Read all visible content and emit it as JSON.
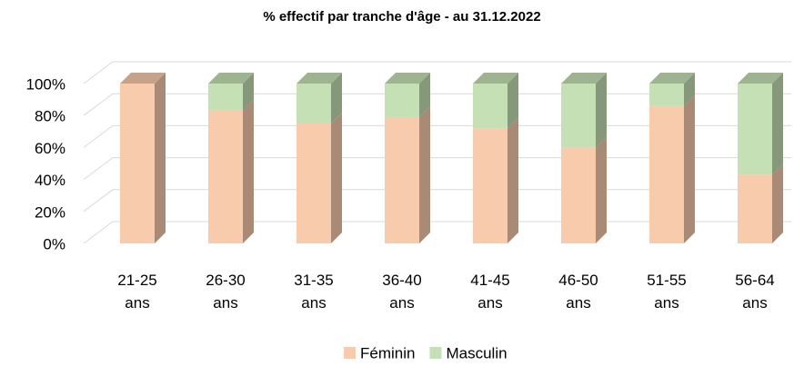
{
  "chart_data": {
    "type": "bar3d_stacked",
    "title": "% effectif par tranche d'âge - au 31.12.2022",
    "categories": [
      "21-25 ans",
      "26-30 ans",
      "31-35 ans",
      "36-40 ans",
      "41-45 ans",
      "46-50 ans",
      "51-55 ans",
      "56-64 ans"
    ],
    "series": [
      {
        "name": "Féminin",
        "color": "#f8cbad",
        "values": [
          100,
          83,
          75,
          79,
          72,
          60,
          86,
          43
        ]
      },
      {
        "name": "Masculin",
        "color": "#c5e0b4",
        "values": [
          0,
          17,
          25,
          21,
          28,
          40,
          14,
          57
        ]
      }
    ],
    "ylim": [
      0,
      100
    ],
    "yticks": [
      {
        "value": 0,
        "label": "0%"
      },
      {
        "value": 20,
        "label": "20%"
      },
      {
        "value": 40,
        "label": "40%"
      },
      {
        "value": 60,
        "label": "60%"
      },
      {
        "value": 80,
        "label": "80%"
      },
      {
        "value": 100,
        "label": "100%"
      }
    ],
    "grid": true,
    "legend": "bottom"
  }
}
